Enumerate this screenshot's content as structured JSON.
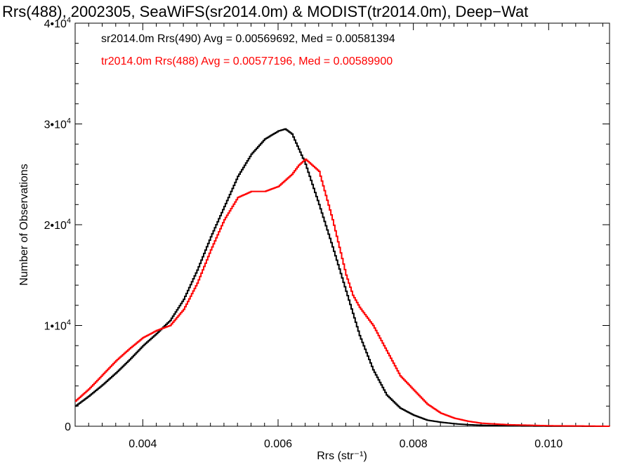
{
  "chart_data": {
    "type": "line",
    "title": "Rrs(488), 2002305, SeaWiFS(sr2014.0m) & MODIST(tr2014.0m), Deep−Wat",
    "xlabel": "Rrs (str⁻¹)",
    "ylabel": "Number of Observations",
    "xlim": [
      0.003,
      0.0109
    ],
    "ylim": [
      0,
      40000
    ],
    "x_ticks": [
      {
        "value": 0.004,
        "label": "0.004"
      },
      {
        "value": 0.006,
        "label": "0.006"
      },
      {
        "value": 0.008,
        "label": "0.008"
      },
      {
        "value": 0.01,
        "label": "0.010"
      }
    ],
    "y_ticks": [
      {
        "value": 0,
        "base": "0",
        "exp": ""
      },
      {
        "value": 10000,
        "base": "1•10",
        "exp": "4"
      },
      {
        "value": 20000,
        "base": "2•10",
        "exp": "4"
      },
      {
        "value": 30000,
        "base": "3•10",
        "exp": "4"
      },
      {
        "value": 40000,
        "base": "4•10",
        "exp": "4"
      }
    ],
    "grid": false,
    "legend_position": "top-left",
    "series": [
      {
        "name": "sr2014.0m Rrs(490) Avg = 0.00569692, Med = 0.00581394",
        "color": "#000000",
        "x": [
          0.003,
          0.0032,
          0.0034,
          0.0036,
          0.0038,
          0.004,
          0.0042,
          0.0044,
          0.0046,
          0.0048,
          0.005,
          0.0052,
          0.0054,
          0.0056,
          0.0058,
          0.006,
          0.0061,
          0.0062,
          0.0064,
          0.0066,
          0.0068,
          0.007,
          0.0072,
          0.0074,
          0.0076,
          0.0078,
          0.008,
          0.0082,
          0.0084,
          0.0086,
          0.0088,
          0.009,
          0.0094,
          0.01,
          0.0109
        ],
        "y": [
          2000,
          3000,
          4100,
          5300,
          6600,
          8000,
          9200,
          10500,
          12600,
          15500,
          18800,
          21800,
          24800,
          27000,
          28500,
          29300,
          29500,
          29000,
          26000,
          22000,
          17800,
          13400,
          9000,
          5600,
          3100,
          1800,
          1100,
          600,
          400,
          250,
          150,
          100,
          40,
          10,
          0
        ]
      },
      {
        "name": "tr2014.0m Rrs(488) Avg = 0.00577196, Med = 0.00589900",
        "color": "#ff0000",
        "x": [
          0.003,
          0.0032,
          0.0034,
          0.0036,
          0.0038,
          0.004,
          0.0042,
          0.0044,
          0.0046,
          0.0048,
          0.005,
          0.0052,
          0.0054,
          0.0056,
          0.0058,
          0.006,
          0.0062,
          0.0063,
          0.0064,
          0.0066,
          0.0068,
          0.007,
          0.0071,
          0.0072,
          0.0074,
          0.0076,
          0.0078,
          0.008,
          0.0082,
          0.0084,
          0.0086,
          0.0088,
          0.009,
          0.0094,
          0.01,
          0.0109
        ],
        "y": [
          2500,
          3700,
          5100,
          6500,
          7700,
          8800,
          9500,
          10000,
          11600,
          14200,
          17500,
          20500,
          22700,
          23300,
          23300,
          23800,
          25000,
          25900,
          26500,
          25300,
          20500,
          15000,
          13000,
          11800,
          10000,
          7500,
          5000,
          3600,
          2200,
          1300,
          800,
          500,
          300,
          150,
          50,
          0
        ]
      }
    ]
  }
}
